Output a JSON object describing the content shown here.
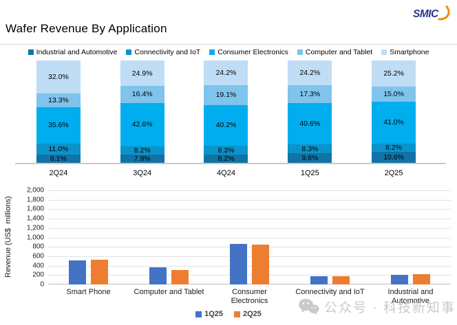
{
  "header": {
    "title": "Wafer Revenue By Application",
    "logo_text": "SMIC"
  },
  "colors": {
    "divider": "#d9d9d9",
    "gridline": "#e2e2e2",
    "axis_line": "#bfbfbf",
    "logo_blue": "#26358C",
    "logo_orange": "#F28B00",
    "watermark_gray": "#c6c6c6"
  },
  "chart_data": [
    {
      "type": "bar",
      "subtype": "stacked-100-percent",
      "title": "",
      "categories": [
        "2Q24",
        "3Q24",
        "4Q24",
        "1Q25",
        "2Q25"
      ],
      "series": [
        {
          "name": "Industrial and Automotive",
          "color": "#1173A6",
          "values": [
            8.1,
            7.9,
            8.2,
            9.6,
            10.6
          ]
        },
        {
          "name": "Connectivity and IoT",
          "color": "#0B93CC",
          "values": [
            11.0,
            8.2,
            8.3,
            8.3,
            8.2
          ]
        },
        {
          "name": "Consumer Electronics",
          "color": "#00AEEF",
          "values": [
            35.6,
            42.6,
            40.2,
            40.6,
            41.0
          ]
        },
        {
          "name": "Computer and Tablet",
          "color": "#7EC4EC",
          "values": [
            13.3,
            16.4,
            19.1,
            17.3,
            15.0
          ]
        },
        {
          "name": "Smartphone",
          "color": "#BFDDF4",
          "values": [
            32.0,
            24.9,
            24.2,
            24.2,
            25.2
          ]
        }
      ],
      "value_suffix": "%",
      "ylim": [
        0,
        100
      ],
      "grid": false,
      "legend_position": "top",
      "data_labels": true
    },
    {
      "type": "bar",
      "subtype": "grouped",
      "title": "",
      "categories": [
        "Smart Phone",
        "Computer and Tablet",
        "Consumer Electronics",
        "Connectivity and IoT",
        "Industrial and Automotive"
      ],
      "series": [
        {
          "name": "1Q25",
          "color": "#4472C4",
          "values": [
            514,
            367,
            862,
            177,
            204
          ]
        },
        {
          "name": "2Q25",
          "color": "#ED7D31",
          "values": [
            523,
            311,
            851,
            170,
            220
          ]
        }
      ],
      "xlabel": "",
      "ylabel": "Revenue (US$  millions)",
      "ylim": [
        0,
        2000
      ],
      "ytick_step": 200,
      "grid": true,
      "legend_position": "bottom",
      "data_labels": false
    }
  ],
  "watermark": {
    "icon": "wechat-icon",
    "text": "公众号 · 科技新知事"
  }
}
